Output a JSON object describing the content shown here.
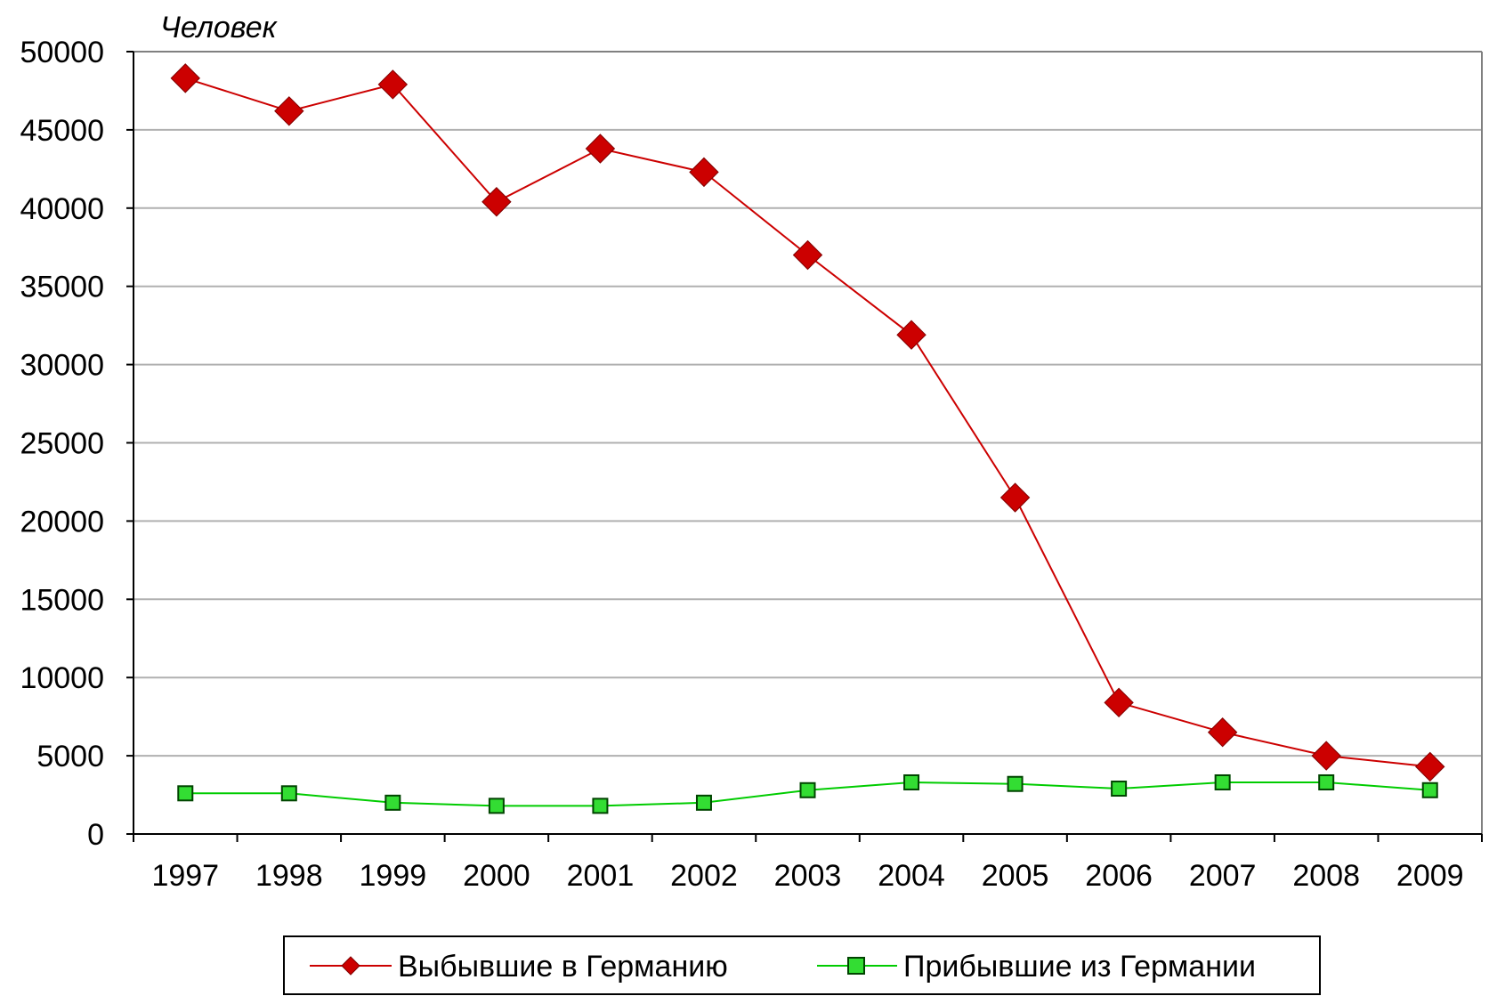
{
  "chart_data": {
    "type": "line",
    "unit_label": "Человек",
    "x": [
      "1997",
      "1998",
      "1999",
      "2000",
      "2001",
      "2002",
      "2003",
      "2004",
      "2005",
      "2006",
      "2007",
      "2008",
      "2009"
    ],
    "ylim": [
      0,
      50000
    ],
    "yticks": [
      0,
      5000,
      10000,
      15000,
      20000,
      25000,
      30000,
      35000,
      40000,
      45000,
      50000
    ],
    "grid": true,
    "legend_position": "bottom",
    "series": [
      {
        "name": "Выбывшие в Германию",
        "color": "#cc0000",
        "marker": "diamond",
        "values": [
          48300,
          46200,
          47900,
          40400,
          43800,
          42300,
          37000,
          31900,
          21500,
          8400,
          6500,
          5000,
          4300
        ]
      },
      {
        "name": "Прибывшие из Германии",
        "color": "#00cc00",
        "marker": "square",
        "values": [
          2600,
          2600,
          2000,
          1800,
          1800,
          2000,
          2800,
          3300,
          3200,
          2900,
          3300,
          3300,
          2800
        ]
      }
    ]
  }
}
